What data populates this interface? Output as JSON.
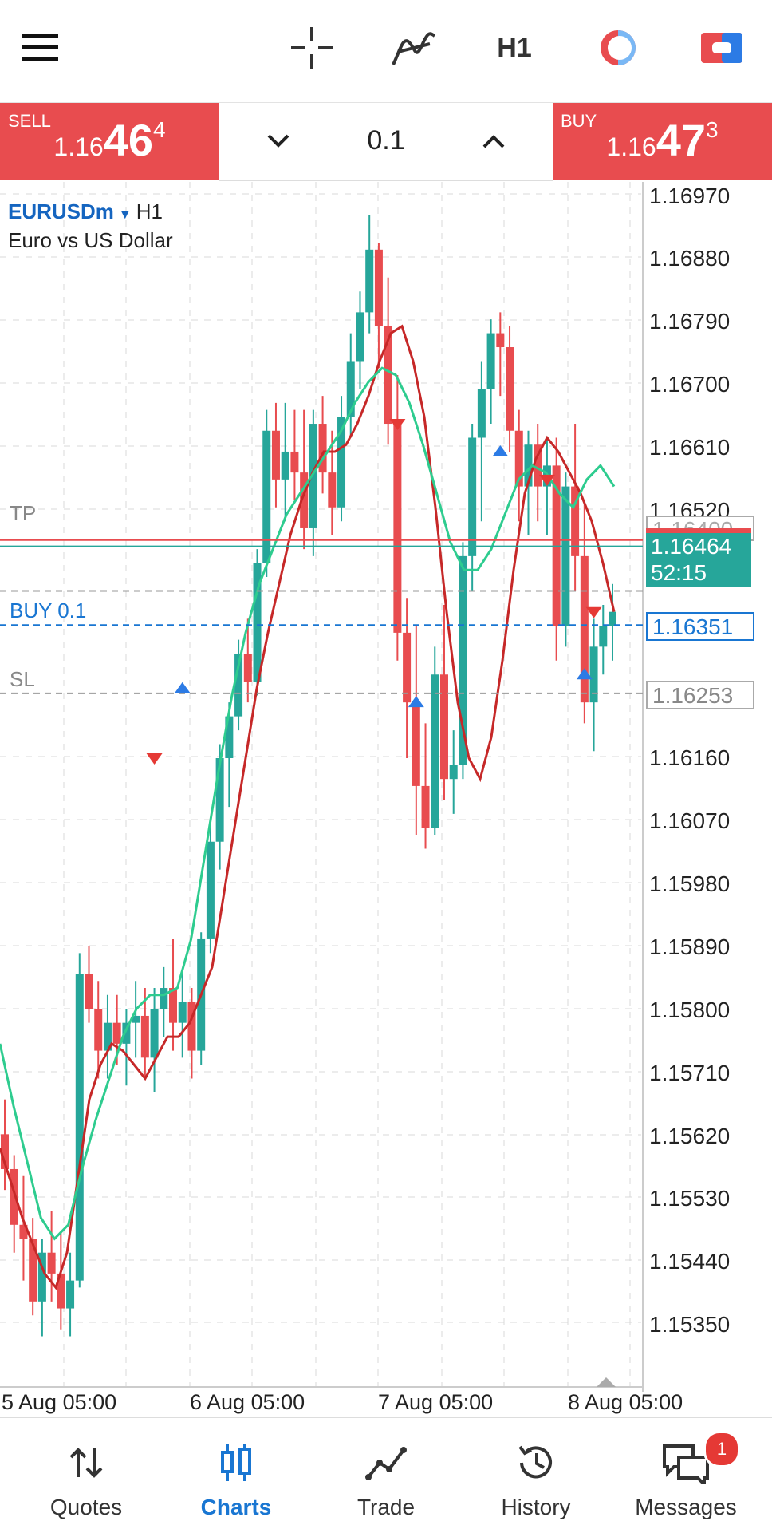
{
  "toolbar": {
    "timeframe": "H1",
    "icons": [
      "menu-icon",
      "crosshair-icon",
      "indicators-icon",
      "trade-clock-icon",
      "one-click-trading-icon"
    ]
  },
  "trade_panel": {
    "sell": {
      "label": "SELL",
      "price_small": "1.16",
      "price_big": "46",
      "price_sup": "4"
    },
    "buy": {
      "label": "BUY",
      "price_small": "1.16",
      "price_big": "47",
      "price_sup": "3"
    },
    "lot": "0.1"
  },
  "chart": {
    "symbol": "EURUSDm",
    "timeframe": "H1",
    "description": "Euro vs US Dollar",
    "price_labels": [
      "1.16970",
      "1.16880",
      "1.16790",
      "1.16700",
      "1.16610",
      "1.16520",
      "1.16160",
      "1.16070",
      "1.15980",
      "1.15890",
      "1.15800",
      "1.15710",
      "1.15620",
      "1.15530",
      "1.15440",
      "1.15350"
    ],
    "date_labels": [
      "5 Aug 05:00",
      "6 Aug 05:00",
      "7 Aug 05:00",
      "8 Aug 05:00"
    ],
    "levels": {
      "tp_label": "TP",
      "tp_value": "1.16400",
      "buy_label": "BUY 0.1",
      "buy_value": "1.16351",
      "sl_label": "SL",
      "sl_value": "1.16253",
      "current_price": "1.16464",
      "countdown": "52:15"
    },
    "colors": {
      "bull": "#26a69a",
      "bear": "#e84c4f",
      "ma_fast": "#c62828",
      "ma_slow": "#2ecc8f",
      "order_line": "#1976d2"
    }
  },
  "chart_data": {
    "type": "candlestick",
    "timeframe": "H1",
    "ylim": [
      1.1531,
      1.17
    ],
    "x": [
      "5 Aug 05:00",
      "6 Aug 05:00",
      "7 Aug 05:00",
      "8 Aug 05:00"
    ],
    "series": [
      {
        "values": [
          [
            1.1562,
            1.1567,
            1.1554,
            1.1557
          ],
          [
            1.1557,
            1.1559,
            1.1545,
            1.1549
          ],
          [
            1.1549,
            1.1556,
            1.1541,
            1.1547
          ],
          [
            1.1547,
            1.155,
            1.1536,
            1.1538
          ],
          [
            1.1538,
            1.1547,
            1.1533,
            1.1545
          ],
          [
            1.1545,
            1.1551,
            1.1538,
            1.1542
          ],
          [
            1.1542,
            1.1548,
            1.1534,
            1.1537
          ],
          [
            1.1537,
            1.1545,
            1.1533,
            1.1541
          ],
          [
            1.1541,
            1.1588,
            1.154,
            1.1585
          ],
          [
            1.1585,
            1.1589,
            1.1578,
            1.158
          ],
          [
            1.158,
            1.1584,
            1.157,
            1.1574
          ],
          [
            1.1574,
            1.1582,
            1.157,
            1.1578
          ],
          [
            1.1578,
            1.1582,
            1.1572,
            1.1575
          ],
          [
            1.1575,
            1.158,
            1.1569,
            1.1578
          ],
          [
            1.1578,
            1.1584,
            1.1573,
            1.1579
          ],
          [
            1.1579,
            1.1583,
            1.157,
            1.1573
          ],
          [
            1.1573,
            1.1583,
            1.1568,
            1.158
          ],
          [
            1.158,
            1.1586,
            1.1576,
            1.1583
          ],
          [
            1.1583,
            1.159,
            1.1574,
            1.1578
          ],
          [
            1.1578,
            1.1585,
            1.1573,
            1.1581
          ],
          [
            1.1581,
            1.1583,
            1.157,
            1.1574
          ],
          [
            1.1574,
            1.1591,
            1.1572,
            1.159
          ],
          [
            1.159,
            1.1606,
            1.1588,
            1.1604
          ],
          [
            1.1604,
            1.1618,
            1.16,
            1.1616
          ],
          [
            1.1616,
            1.1624,
            1.1609,
            1.1622
          ],
          [
            1.1622,
            1.1633,
            1.162,
            1.1631
          ],
          [
            1.1631,
            1.1636,
            1.1624,
            1.1627
          ],
          [
            1.1627,
            1.1646,
            1.1625,
            1.1644
          ],
          [
            1.1644,
            1.1666,
            1.1642,
            1.1663
          ],
          [
            1.1663,
            1.1667,
            1.1652,
            1.1656
          ],
          [
            1.1656,
            1.1667,
            1.165,
            1.166
          ],
          [
            1.166,
            1.1666,
            1.1653,
            1.1657
          ],
          [
            1.1657,
            1.1666,
            1.1646,
            1.1649
          ],
          [
            1.1649,
            1.1666,
            1.1645,
            1.1664
          ],
          [
            1.1664,
            1.1668,
            1.1654,
            1.1657
          ],
          [
            1.1657,
            1.1663,
            1.1648,
            1.1652
          ],
          [
            1.1652,
            1.1668,
            1.165,
            1.1665
          ],
          [
            1.1665,
            1.1677,
            1.1662,
            1.1673
          ],
          [
            1.1673,
            1.1683,
            1.1669,
            1.168
          ],
          [
            1.168,
            1.1694,
            1.1677,
            1.1689
          ],
          [
            1.1689,
            1.169,
            1.1672,
            1.1678
          ],
          [
            1.1678,
            1.1685,
            1.1661,
            1.1664
          ],
          [
            1.1664,
            1.1671,
            1.163,
            1.1634
          ],
          [
            1.1634,
            1.1639,
            1.1616,
            1.1624
          ],
          [
            1.1624,
            1.1635,
            1.1605,
            1.1612
          ],
          [
            1.1612,
            1.1621,
            1.1603,
            1.1606
          ],
          [
            1.1606,
            1.1632,
            1.1605,
            1.1628
          ],
          [
            1.1628,
            1.1638,
            1.161,
            1.1613
          ],
          [
            1.1613,
            1.162,
            1.1608,
            1.1615
          ],
          [
            1.1615,
            1.1647,
            1.1613,
            1.1645
          ],
          [
            1.1645,
            1.1664,
            1.164,
            1.1662
          ],
          [
            1.1662,
            1.1673,
            1.165,
            1.1669
          ],
          [
            1.1669,
            1.1679,
            1.1664,
            1.1677
          ],
          [
            1.1677,
            1.168,
            1.1668,
            1.1675
          ],
          [
            1.1675,
            1.1678,
            1.166,
            1.1663
          ],
          [
            1.1663,
            1.1666,
            1.165,
            1.1655
          ],
          [
            1.1655,
            1.1663,
            1.1648,
            1.1661
          ],
          [
            1.1661,
            1.1664,
            1.165,
            1.1655
          ],
          [
            1.1655,
            1.1662,
            1.1648,
            1.1658
          ],
          [
            1.1658,
            1.1662,
            1.163,
            1.1635
          ],
          [
            1.1635,
            1.1657,
            1.1632,
            1.1655
          ],
          [
            1.1655,
            1.1664,
            1.164,
            1.1645
          ],
          [
            1.1645,
            1.1653,
            1.1621,
            1.1624
          ],
          [
            1.1624,
            1.1636,
            1.1617,
            1.1632
          ],
          [
            1.1632,
            1.1638,
            1.1628,
            1.1635
          ],
          [
            1.1635,
            1.1641,
            1.163,
            1.1637
          ]
        ]
      }
    ],
    "moving_averages": [
      {
        "values": [
          1.156,
          1.1555,
          1.155,
          1.1546,
          1.1542,
          1.154,
          1.1545,
          1.1556,
          1.1567,
          1.1572,
          1.1575,
          1.1574,
          1.1572,
          1.157,
          1.1573,
          1.1576,
          1.1576,
          1.1578,
          1.1582,
          1.1586,
          1.1596,
          1.1606,
          1.1616,
          1.1626,
          1.1634,
          1.1641,
          1.1648,
          1.1653,
          1.1657,
          1.166,
          1.166,
          1.1661,
          1.1664,
          1.1668,
          1.1673,
          1.1677,
          1.1678,
          1.1673,
          1.1665,
          1.1652,
          1.1637,
          1.1624,
          1.1616,
          1.1613,
          1.1619,
          1.163,
          1.1643,
          1.1654,
          1.1659,
          1.1662,
          1.166,
          1.1657,
          1.1654,
          1.165,
          1.1644,
          1.1637
        ]
      },
      {
        "values": [
          1.1575,
          1.1566,
          1.1558,
          1.155,
          1.1547,
          1.1549,
          1.1557,
          1.1564,
          1.157,
          1.1576,
          1.158,
          1.1582,
          1.1582,
          1.1583,
          1.159,
          1.1602,
          1.1614,
          1.1625,
          1.1634,
          1.1641,
          1.1646,
          1.1651,
          1.1654,
          1.1657,
          1.166,
          1.1663,
          1.1667,
          1.167,
          1.1672,
          1.1671,
          1.1667,
          1.1661,
          1.1654,
          1.1647,
          1.1643,
          1.1643,
          1.1646,
          1.1651,
          1.1656,
          1.1658,
          1.1657,
          1.1654,
          1.1652,
          1.1656,
          1.1658,
          1.1655
        ]
      }
    ],
    "grid": true
  }
}
